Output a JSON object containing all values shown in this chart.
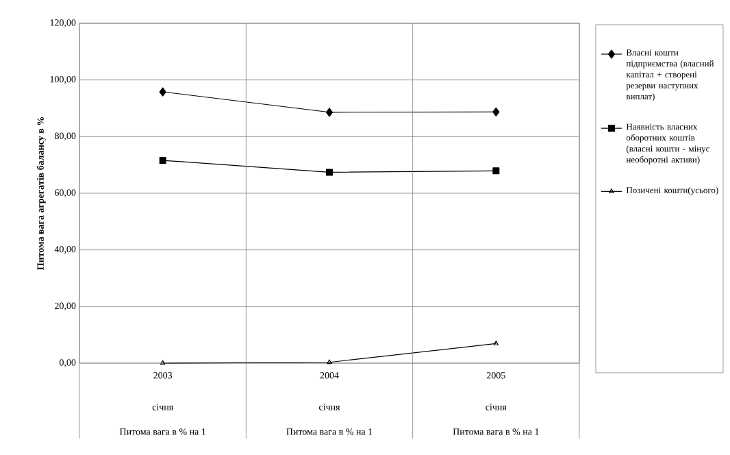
{
  "chart_data": {
    "type": "line",
    "ylabel": "Питома вага агрегатів балансу в %",
    "categories": [
      "2003",
      "2004",
      "2005"
    ],
    "series": [
      {
        "name": "Власні кошти підприємства (власний капітал + створені резерви наступних виплат)",
        "color": "#000000",
        "marker": "diamond",
        "values": [
          95.8,
          88.6,
          88.7
        ]
      },
      {
        "name": "Наявність власних оборотних коштів (власні кошти - мінус необоротні активи)",
        "color": "#000000",
        "marker": "square",
        "values": [
          71.6,
          67.4,
          67.9
        ]
      },
      {
        "name": "Позичені кошти(усього)",
        "color": "#000000",
        "marker": "triangle",
        "values": [
          0.0,
          0.3,
          6.9
        ]
      }
    ],
    "ylim": [
      0,
      120
    ],
    "yticks": [
      {
        "value": 0,
        "label": "0,00"
      },
      {
        "value": 20,
        "label": "20,00"
      },
      {
        "value": 40,
        "label": "40,00"
      },
      {
        "value": 60,
        "label": "60,00"
      },
      {
        "value": 80,
        "label": "80,00"
      },
      {
        "value": 100,
        "label": "100,00"
      },
      {
        "value": 120,
        "label": "120,00"
      }
    ],
    "annotations": [
      "січня",
      "січня",
      "січня",
      "Питома вага в % на 1",
      "Питома вага в % на 1",
      "Питома вага в % на 1"
    ],
    "grid": "y",
    "legend": "right",
    "line_style": "solid"
  }
}
